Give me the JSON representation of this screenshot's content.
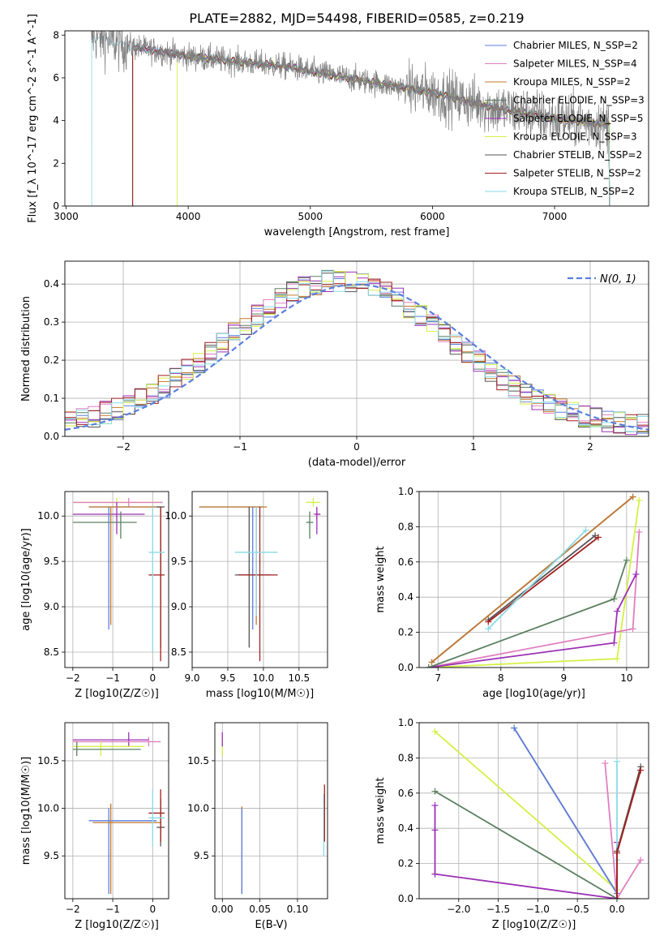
{
  "title": "PLATE=2882, MJD=54498, FIBERID=0585, z=0.219",
  "colors": {
    "c0": "#5b7fe0",
    "c1": "#e07fbf",
    "c2": "#c47a2c",
    "c3": "#5b8060",
    "c4": "#9b30b5",
    "c5": "#d4f045",
    "c6": "#555555",
    "c7": "#a31f1f",
    "c8": "#8adbe8",
    "data": "#808080"
  },
  "chart_data": [
    {
      "id": "spectrum",
      "type": "line",
      "xlabel": "wavelength [Angstrom, rest frame]",
      "ylabel": "Flux [f_λ 10^-17 erg cm^-2 s^-1 A^-1]",
      "xlim": [
        2990,
        7770
      ],
      "ylim": [
        0,
        8.2
      ],
      "xticks": [
        3000,
        4000,
        5000,
        6000,
        7000
      ],
      "yticks": [
        0,
        2,
        4,
        6,
        8
      ],
      "legend_position": "top-right",
      "series": [
        {
          "name": "Chabrier MILES, N_SSP=2",
          "color": "c0"
        },
        {
          "name": "Salpeter MILES, N_SSP=4",
          "color": "c1"
        },
        {
          "name": "Kroupa MILES, N_SSP=2",
          "color": "c2"
        },
        {
          "name": "Chabrier ELODIE, N_SSP=3",
          "color": "c3"
        },
        {
          "name": "Salpeter ELODIE, N_SSP=5",
          "color": "c4"
        },
        {
          "name": "Kroupa ELODIE, N_SSP=3",
          "color": "c5"
        },
        {
          "name": "Chabrier STELIB, N_SSP=2",
          "color": "c6"
        },
        {
          "name": "Salpeter STELIB, N_SSP=2",
          "color": "c7"
        },
        {
          "name": "Kroupa STELIB, N_SSP=2",
          "color": "c8"
        }
      ],
      "model_continuum": [
        [
          3200,
          8.0
        ],
        [
          3500,
          7.5
        ],
        [
          4000,
          7.0
        ],
        [
          4500,
          6.7
        ],
        [
          4850,
          6.5
        ],
        [
          5000,
          6.3
        ],
        [
          5500,
          5.8
        ],
        [
          6000,
          5.3
        ],
        [
          6500,
          4.6
        ],
        [
          7000,
          4.1
        ],
        [
          7450,
          3.8
        ]
      ],
      "model_start": {
        "c8": 3210,
        "c0": 3545,
        "c1": 3545,
        "c2": 3545,
        "c3": 3545,
        "c4": 3545,
        "c6": 3545,
        "c7": 3545,
        "c5": 3910
      }
    },
    {
      "id": "residuals",
      "type": "histogram",
      "xlabel": "(data-model)/error",
      "ylabel": "Normed distribution",
      "xlim": [
        -2.5,
        2.5
      ],
      "ylim": [
        0,
        0.46
      ],
      "xticks": [
        -2,
        -1,
        0,
        1,
        2
      ],
      "yticks": [
        0.0,
        0.1,
        0.2,
        0.3,
        0.4
      ],
      "grid": true,
      "legend_position": "top-right",
      "legend": "N(0, 1)",
      "gauss_color": "c0"
    },
    {
      "id": "age_vs_Z",
      "type": "errorbar",
      "xlabel": "Z [log10(Z/Z☉)]",
      "ylabel": "age  [log10(age/yr)]",
      "xlim": [
        -2.2,
        0.4
      ],
      "ylim": [
        8.33,
        10.27
      ],
      "xticks": [
        -2,
        -1,
        0
      ],
      "yticks": [
        8.5,
        9.0,
        9.5,
        10.0
      ],
      "grid": true,
      "points": [
        {
          "c": "c5",
          "x": -0.9,
          "xe": [
            -2.0,
            0.2
          ],
          "y": 10.15,
          "ye": [
            10.1,
            10.2
          ]
        },
        {
          "c": "c1",
          "x": -0.6,
          "xe": [
            -2.0,
            0.25
          ],
          "y": 10.15,
          "ye": [
            10.1,
            10.2
          ]
        },
        {
          "c": "c4",
          "x": -0.9,
          "xe": [
            -2.0,
            -0.2
          ],
          "y": 10.02,
          "ye": [
            9.8,
            10.15
          ]
        },
        {
          "c": "c3",
          "x": -0.8,
          "xe": [
            -2.0,
            -0.4
          ],
          "y": 9.93,
          "ye": [
            9.75,
            10.05
          ]
        },
        {
          "c": "c0",
          "x": -1.1,
          "xe": [
            -1.6,
            0.1
          ],
          "y": 10.1,
          "ye": [
            8.75,
            10.1
          ]
        },
        {
          "c": "c2",
          "x": -1.05,
          "xe": [
            -1.6,
            0.2
          ],
          "y": 10.1,
          "ye": [
            8.8,
            10.1
          ]
        },
        {
          "c": "c6",
          "x": 0.2,
          "xe": [
            0.1,
            0.3
          ],
          "y": 10.1,
          "ye": [
            8.55,
            10.1
          ]
        },
        {
          "c": "c7",
          "x": 0.2,
          "xe": [
            -0.1,
            0.3
          ],
          "y": 9.35,
          "ye": [
            8.4,
            10.1
          ]
        },
        {
          "c": "c8",
          "x": 0.0,
          "xe": [
            -0.1,
            0.3
          ],
          "y": 9.6,
          "ye": [
            8.5,
            10.1
          ]
        }
      ]
    },
    {
      "id": "age_vs_mass",
      "type": "errorbar",
      "xlabel": "mass [log10(M/M☉)]",
      "ylabel": "",
      "xlim": [
        9.0,
        10.9
      ],
      "ylim": [
        8.33,
        10.27
      ],
      "xticks": [
        9.0,
        9.5,
        10.0,
        10.5
      ],
      "yticks": [
        8.5,
        9.0,
        9.5,
        10.0
      ],
      "grid": true,
      "points": [
        {
          "c": "c5",
          "x": 10.7,
          "xe": [
            10.6,
            10.8
          ],
          "y": 10.15,
          "ye": [
            10.1,
            10.2
          ]
        },
        {
          "c": "c1",
          "x": 10.75,
          "xe": [
            10.7,
            10.8
          ],
          "y": 10.02,
          "ye": [
            9.95,
            10.1
          ]
        },
        {
          "c": "c4",
          "x": 10.75,
          "xe": [
            10.72,
            10.8
          ],
          "y": 10.02,
          "ye": [
            9.8,
            10.1
          ]
        },
        {
          "c": "c3",
          "x": 10.65,
          "xe": [
            10.6,
            10.7
          ],
          "y": 9.93,
          "ye": [
            9.75,
            10.05
          ]
        },
        {
          "c": "c0",
          "x": 9.85,
          "xe": [
            9.1,
            10.0
          ],
          "y": 10.1,
          "ye": [
            8.75,
            10.1
          ]
        },
        {
          "c": "c2",
          "x": 9.9,
          "xe": [
            9.1,
            10.05
          ],
          "y": 10.1,
          "ye": [
            8.8,
            10.1
          ]
        },
        {
          "c": "c6",
          "x": 9.8,
          "xe": [
            9.6,
            10.1
          ],
          "y": 9.35,
          "ye": [
            8.55,
            10.1
          ]
        },
        {
          "c": "c7",
          "x": 9.95,
          "xe": [
            9.65,
            10.2
          ],
          "y": 9.35,
          "ye": [
            8.4,
            10.1
          ]
        },
        {
          "c": "c8",
          "x": 9.9,
          "xe": [
            9.6,
            10.2
          ],
          "y": 9.6,
          "ye": [
            8.9,
            10.1
          ]
        }
      ]
    },
    {
      "id": "weight_vs_age",
      "type": "line",
      "xlabel": "age  [log10(age/yr)]",
      "ylabel": "mass weight",
      "xlim": [
        6.7,
        10.35
      ],
      "ylim": [
        0,
        1
      ],
      "xticks": [
        7,
        8,
        9,
        10
      ],
      "yticks": [
        0.0,
        0.2,
        0.4,
        0.6,
        0.8,
        1.0
      ],
      "grid": true,
      "series": [
        {
          "c": "c5",
          "x": [
            6.85,
            9.85,
            10.2
          ],
          "y": [
            0.0,
            0.05,
            0.95
          ]
        },
        {
          "c": "c1",
          "x": [
            6.85,
            10.1,
            10.2
          ],
          "y": [
            0.0,
            0.22,
            0.77
          ]
        },
        {
          "c": "c4",
          "x": [
            6.85,
            9.8,
            9.85,
            10.15
          ],
          "y": [
            0.0,
            0.14,
            0.32,
            0.53
          ]
        },
        {
          "c": "c3",
          "x": [
            6.85,
            9.8,
            10.0
          ],
          "y": [
            0.0,
            0.39,
            0.61
          ]
        },
        {
          "c": "c0",
          "x": [
            6.9,
            10.1
          ],
          "y": [
            0.03,
            0.97
          ]
        },
        {
          "c": "c2",
          "x": [
            6.9,
            10.1
          ],
          "y": [
            0.03,
            0.97
          ]
        },
        {
          "c": "c6",
          "x": [
            7.8,
            9.5
          ],
          "y": [
            0.27,
            0.75
          ]
        },
        {
          "c": "c7",
          "x": [
            7.8,
            9.55
          ],
          "y": [
            0.26,
            0.74
          ]
        },
        {
          "c": "c8",
          "x": [
            7.8,
            9.35
          ],
          "y": [
            0.22,
            0.78
          ]
        }
      ]
    },
    {
      "id": "mass_vs_Z",
      "type": "errorbar",
      "xlabel": "Z [log10(Z/Z☉)]",
      "ylabel": "mass [log10(M/M☉)]",
      "xlim": [
        -2.2,
        0.4
      ],
      "ylim": [
        9.05,
        10.9
      ],
      "xticks": [
        -2,
        -1,
        0
      ],
      "yticks": [
        9.5,
        10.0,
        10.5
      ],
      "grid": true,
      "points": [
        {
          "c": "c4",
          "x": -0.6,
          "xe": [
            -2.0,
            -0.1
          ],
          "y": 10.72,
          "ye": [
            10.65,
            10.8
          ]
        },
        {
          "c": "c1",
          "x": -0.1,
          "xe": [
            -2.0,
            0.2
          ],
          "y": 10.7,
          "ye": [
            10.65,
            10.75
          ]
        },
        {
          "c": "c5",
          "x": -1.3,
          "xe": [
            -2.0,
            -0.2
          ],
          "y": 10.65,
          "ye": [
            10.55,
            10.7
          ]
        },
        {
          "c": "c3",
          "x": -1.9,
          "xe": [
            -2.0,
            -0.3
          ],
          "y": 10.62,
          "ye": [
            10.55,
            10.7
          ]
        },
        {
          "c": "c0",
          "x": -1.1,
          "xe": [
            -1.6,
            0.1
          ],
          "y": 9.87,
          "ye": [
            9.1,
            10.0
          ]
        },
        {
          "c": "c2",
          "x": -1.05,
          "xe": [
            -1.5,
            0.2
          ],
          "y": 9.85,
          "ye": [
            9.1,
            10.05
          ]
        },
        {
          "c": "c6",
          "x": 0.2,
          "xe": [
            0.1,
            0.3
          ],
          "y": 9.8,
          "ye": [
            9.6,
            10.1
          ]
        },
        {
          "c": "c7",
          "x": 0.2,
          "xe": [
            -0.1,
            0.3
          ],
          "y": 9.95,
          "ye": [
            9.65,
            10.2
          ]
        },
        {
          "c": "c8",
          "x": 0.0,
          "xe": [
            -0.1,
            0.3
          ],
          "y": 9.9,
          "ye": [
            9.6,
            10.2
          ]
        }
      ]
    },
    {
      "id": "mass_vs_EBV",
      "type": "errorbar",
      "xlabel": "E(B-V)",
      "ylabel": "",
      "xlim": [
        -0.01,
        0.14
      ],
      "ylim": [
        9.05,
        10.9
      ],
      "xticks": [
        0.0,
        0.05,
        0.1
      ],
      "yticks": [
        9.5,
        10.0,
        10.5
      ],
      "grid": true,
      "points": [
        {
          "c": "c5",
          "x": 0.0,
          "xe": [
            0.0,
            0.0
          ],
          "y": 10.65,
          "ye": [
            10.55,
            10.75
          ]
        },
        {
          "c": "c4",
          "x": 0.0,
          "xe": [
            0.0,
            0.0
          ],
          "y": 10.72,
          "ye": [
            10.65,
            10.8
          ]
        },
        {
          "c": "c2",
          "x": 0.026,
          "xe": [
            0.026,
            0.026
          ],
          "y": 9.85,
          "ye": [
            9.1,
            10.02
          ]
        },
        {
          "c": "c0",
          "x": 0.026,
          "xe": [
            0.026,
            0.026
          ],
          "y": 9.87,
          "ye": [
            9.1,
            10.0
          ]
        },
        {
          "c": "c8",
          "x": 0.135,
          "xe": [
            0.135,
            0.135
          ],
          "y": 9.9,
          "ye": [
            9.5,
            10.15
          ]
        },
        {
          "c": "c7",
          "x": 0.136,
          "xe": [
            0.136,
            0.136
          ],
          "y": 9.95,
          "ye": [
            9.65,
            10.25
          ]
        }
      ]
    },
    {
      "id": "weight_vs_Z",
      "type": "line",
      "xlabel": "Z [log10(Z/Z☉)]",
      "ylabel": "mass weight",
      "xlim": [
        -2.5,
        0.4
      ],
      "ylim": [
        0,
        1
      ],
      "xticks": [
        -2.0,
        -1.5,
        -1.0,
        -0.5,
        0.0
      ],
      "yticks": [
        0.0,
        0.2,
        0.4,
        0.6,
        0.8,
        1.0
      ],
      "grid": true,
      "series": [
        {
          "c": "c5",
          "x": [
            -2.3,
            0.0,
            0.0
          ],
          "y": [
            0.95,
            0.05,
            0.0
          ]
        },
        {
          "c": "c2",
          "x": [
            -1.3,
            0.0
          ],
          "y": [
            0.97,
            0.03
          ]
        },
        {
          "c": "c0",
          "x": [
            -1.3,
            0.0
          ],
          "y": [
            0.97,
            0.03
          ]
        },
        {
          "c": "c3",
          "x": [
            -2.3,
            0.0
          ],
          "y": [
            0.61,
            0.0
          ]
        },
        {
          "c": "c4",
          "x": [
            -2.3,
            -2.3,
            -2.3,
            -2.3,
            0.0,
            0.0
          ],
          "y": [
            0.53,
            0.39,
            0.14,
            0.14,
            0.0,
            0.32
          ]
        },
        {
          "c": "c1",
          "x": [
            -0.15,
            0.0,
            0.3
          ],
          "y": [
            0.77,
            0.0,
            0.22
          ]
        },
        {
          "c": "c8",
          "x": [
            0.0,
            0.0
          ],
          "y": [
            0.78,
            0.22
          ]
        },
        {
          "c": "c6",
          "x": [
            0.3,
            0.0,
            0.0
          ],
          "y": [
            0.75,
            0.27,
            0.0
          ]
        },
        {
          "c": "c7",
          "x": [
            0.3,
            0.0,
            0.0
          ],
          "y": [
            0.73,
            0.26,
            0.0
          ]
        }
      ]
    }
  ]
}
